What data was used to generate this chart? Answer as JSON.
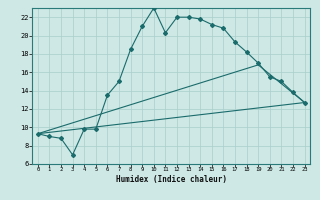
{
  "xlabel": "Humidex (Indice chaleur)",
  "bg_color": "#cde8e5",
  "grid_color": "#aacfcc",
  "line_color": "#1a6b6b",
  "xlim": [
    -0.5,
    23.5
  ],
  "ylim": [
    6,
    23
  ],
  "yticks": [
    6,
    8,
    10,
    12,
    14,
    16,
    18,
    20,
    22
  ],
  "xticks": [
    0,
    1,
    2,
    3,
    4,
    5,
    6,
    7,
    8,
    9,
    10,
    11,
    12,
    13,
    14,
    15,
    16,
    17,
    18,
    19,
    20,
    21,
    22,
    23
  ],
  "line1_x": [
    0,
    1,
    2,
    3,
    4,
    5,
    6,
    7,
    8,
    9,
    10,
    11,
    12,
    13,
    14,
    15,
    16,
    17,
    18,
    19,
    20,
    21,
    22,
    23
  ],
  "line1_y": [
    9.3,
    9.0,
    8.8,
    7.0,
    9.8,
    9.8,
    13.5,
    15.0,
    18.5,
    21.0,
    23.0,
    20.3,
    22.0,
    22.0,
    21.8,
    21.2,
    20.8,
    19.3,
    18.2,
    17.0,
    15.5,
    15.0,
    13.8,
    12.7
  ],
  "line2_x": [
    0,
    23
  ],
  "line2_y": [
    9.3,
    12.7
  ],
  "line3_x": [
    0,
    19,
    23
  ],
  "line3_y": [
    9.3,
    16.8,
    12.7
  ]
}
